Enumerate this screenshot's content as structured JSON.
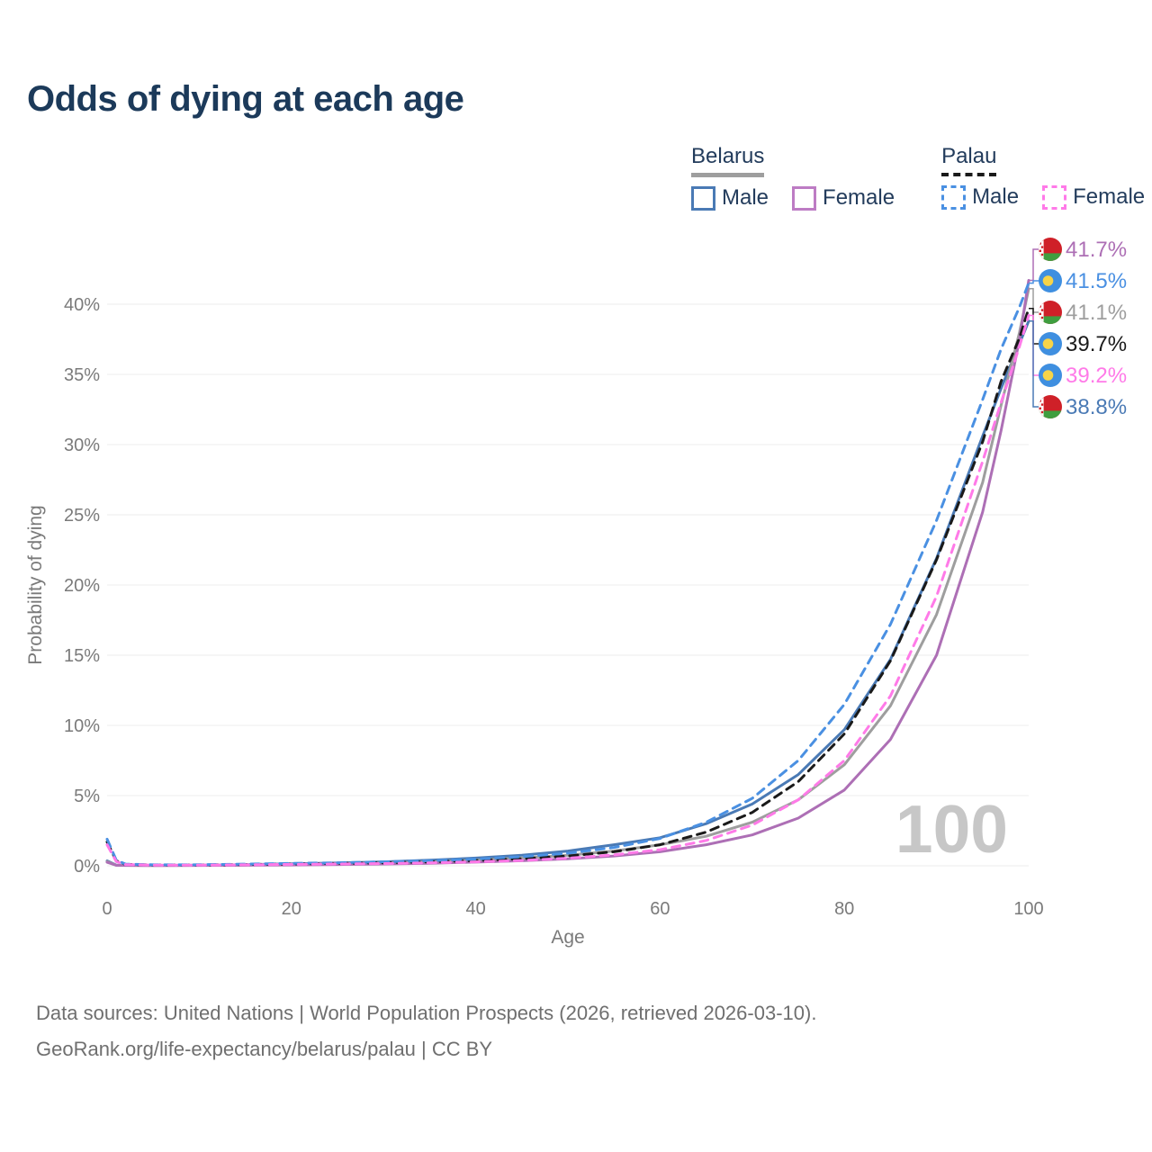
{
  "title": "Odds of dying at each age",
  "legend": {
    "groups": [
      {
        "country": "Belarus",
        "line_style": "solid",
        "underline_color": "#9e9e9e",
        "items": [
          {
            "label": "Male",
            "color": "#4a7ab5",
            "dashed": false
          },
          {
            "label": "Female",
            "color": "#bd7cc4",
            "dashed": false
          }
        ]
      },
      {
        "country": "Palau",
        "line_style": "dashed",
        "underline_color": "#1a1a1a",
        "items": [
          {
            "label": "Male",
            "color": "#4a90e2",
            "dashed": true
          },
          {
            "label": "Female",
            "color": "#ff7ae8",
            "dashed": true
          }
        ]
      }
    ]
  },
  "chart_data": {
    "type": "line",
    "title": "Odds of dying at each age",
    "xlabel": "Age",
    "ylabel": "Probability of dying",
    "xlim": [
      0,
      100
    ],
    "ylim": [
      0,
      40
    ],
    "grid": "horizontal",
    "legend_position": "top-right",
    "watermark": "100",
    "x_ticks": [
      {
        "value": 0,
        "label": "0"
      },
      {
        "value": 20,
        "label": "20"
      },
      {
        "value": 40,
        "label": "40"
      },
      {
        "value": 60,
        "label": "60"
      },
      {
        "value": 80,
        "label": "80"
      },
      {
        "value": 100,
        "label": "100"
      }
    ],
    "y_ticks": [
      {
        "value": 0,
        "label": "0%"
      },
      {
        "value": 5,
        "label": "5%"
      },
      {
        "value": 10,
        "label": "10%"
      },
      {
        "value": 15,
        "label": "15%"
      },
      {
        "value": 20,
        "label": "20%"
      },
      {
        "value": 25,
        "label": "25%"
      },
      {
        "value": 30,
        "label": "30%"
      },
      {
        "value": 35,
        "label": "35%"
      },
      {
        "value": 40,
        "label": "40%"
      }
    ],
    "series": [
      {
        "id": "belarus-male",
        "name": "Belarus Male",
        "country": "belarus",
        "sex": "male",
        "color": "#4a7ab5",
        "dashed": false,
        "end_label": "38.8%",
        "points": [
          [
            0,
            0.35
          ],
          [
            1,
            0.05
          ],
          [
            2,
            0.04
          ],
          [
            5,
            0.03
          ],
          [
            10,
            0.04
          ],
          [
            15,
            0.08
          ],
          [
            20,
            0.14
          ],
          [
            25,
            0.2
          ],
          [
            30,
            0.28
          ],
          [
            35,
            0.4
          ],
          [
            40,
            0.55
          ],
          [
            45,
            0.75
          ],
          [
            50,
            1.05
          ],
          [
            55,
            1.5
          ],
          [
            60,
            2.0
          ],
          [
            65,
            3.0
          ],
          [
            70,
            4.4
          ],
          [
            75,
            6.5
          ],
          [
            80,
            9.7
          ],
          [
            85,
            14.7
          ],
          [
            90,
            21.9
          ],
          [
            95,
            30.6
          ],
          [
            97,
            34.0
          ],
          [
            99,
            37.2
          ],
          [
            100,
            38.8
          ]
        ]
      },
      {
        "id": "belarus-all",
        "name": "Belarus",
        "country": "belarus",
        "sex": "both",
        "color": "#9e9e9e",
        "dashed": false,
        "end_label": "41.1%",
        "points": [
          [
            0,
            0.3
          ],
          [
            1,
            0.04
          ],
          [
            2,
            0.03
          ],
          [
            5,
            0.025
          ],
          [
            10,
            0.03
          ],
          [
            15,
            0.06
          ],
          [
            20,
            0.1
          ],
          [
            25,
            0.15
          ],
          [
            30,
            0.2
          ],
          [
            35,
            0.28
          ],
          [
            40,
            0.4
          ],
          [
            45,
            0.55
          ],
          [
            50,
            0.75
          ],
          [
            55,
            1.05
          ],
          [
            60,
            1.5
          ],
          [
            65,
            2.1
          ],
          [
            70,
            3.1
          ],
          [
            75,
            4.7
          ],
          [
            80,
            7.2
          ],
          [
            85,
            11.4
          ],
          [
            90,
            17.9
          ],
          [
            95,
            27.3
          ],
          [
            97,
            32.8
          ],
          [
            99,
            38.0
          ],
          [
            100,
            41.1
          ]
        ]
      },
      {
        "id": "belarus-female",
        "name": "Belarus Female",
        "country": "belarus",
        "sex": "female",
        "color": "#ad6fb5",
        "dashed": false,
        "end_label": "41.7%",
        "points": [
          [
            0,
            0.25
          ],
          [
            1,
            0.03
          ],
          [
            2,
            0.025
          ],
          [
            5,
            0.02
          ],
          [
            10,
            0.025
          ],
          [
            15,
            0.04
          ],
          [
            20,
            0.06
          ],
          [
            25,
            0.09
          ],
          [
            30,
            0.13
          ],
          [
            35,
            0.18
          ],
          [
            40,
            0.26
          ],
          [
            45,
            0.36
          ],
          [
            50,
            0.5
          ],
          [
            55,
            0.7
          ],
          [
            60,
            1.0
          ],
          [
            65,
            1.5
          ],
          [
            70,
            2.2
          ],
          [
            75,
            3.4
          ],
          [
            80,
            5.4
          ],
          [
            85,
            9.0
          ],
          [
            90,
            15.0
          ],
          [
            95,
            25.2
          ],
          [
            97,
            31.0
          ],
          [
            99,
            37.5
          ],
          [
            100,
            41.7
          ]
        ]
      },
      {
        "id": "palau-all",
        "name": "Palau",
        "country": "palau",
        "sex": "both",
        "color": "#1a1a1a",
        "dashed": true,
        "end_label": "39.7%",
        "points": [
          [
            0,
            1.7
          ],
          [
            1,
            0.35
          ],
          [
            2,
            0.1
          ],
          [
            5,
            0.06
          ],
          [
            10,
            0.06
          ],
          [
            15,
            0.09
          ],
          [
            20,
            0.13
          ],
          [
            25,
            0.17
          ],
          [
            30,
            0.21
          ],
          [
            35,
            0.28
          ],
          [
            40,
            0.37
          ],
          [
            45,
            0.5
          ],
          [
            50,
            0.7
          ],
          [
            55,
            1.0
          ],
          [
            60,
            1.5
          ],
          [
            65,
            2.4
          ],
          [
            70,
            3.8
          ],
          [
            75,
            6.0
          ],
          [
            80,
            9.4
          ],
          [
            85,
            14.6
          ],
          [
            90,
            21.8
          ],
          [
            95,
            30.2
          ],
          [
            97,
            34.5
          ],
          [
            99,
            37.6
          ],
          [
            100,
            39.7
          ]
        ]
      },
      {
        "id": "palau-male",
        "name": "Palau Male",
        "country": "palau",
        "sex": "male",
        "color": "#4a90e2",
        "dashed": true,
        "end_label": "41.5%",
        "points": [
          [
            0,
            1.9
          ],
          [
            1,
            0.4
          ],
          [
            2,
            0.12
          ],
          [
            5,
            0.07
          ],
          [
            10,
            0.08
          ],
          [
            15,
            0.12
          ],
          [
            20,
            0.17
          ],
          [
            25,
            0.22
          ],
          [
            30,
            0.28
          ],
          [
            35,
            0.36
          ],
          [
            40,
            0.48
          ],
          [
            45,
            0.65
          ],
          [
            50,
            0.9
          ],
          [
            55,
            1.3
          ],
          [
            60,
            1.95
          ],
          [
            65,
            3.1
          ],
          [
            70,
            4.8
          ],
          [
            75,
            7.5
          ],
          [
            80,
            11.5
          ],
          [
            85,
            17.2
          ],
          [
            90,
            24.6
          ],
          [
            95,
            33.2
          ],
          [
            97,
            36.8
          ],
          [
            99,
            39.8
          ],
          [
            100,
            41.5
          ]
        ]
      },
      {
        "id": "palau-female",
        "name": "Palau Female",
        "country": "palau",
        "sex": "female",
        "color": "#ff7ae8",
        "dashed": true,
        "end_label": "39.2%",
        "points": [
          [
            0,
            1.5
          ],
          [
            1,
            0.3
          ],
          [
            2,
            0.09
          ],
          [
            5,
            0.05
          ],
          [
            10,
            0.05
          ],
          [
            15,
            0.07
          ],
          [
            20,
            0.1
          ],
          [
            25,
            0.13
          ],
          [
            30,
            0.16
          ],
          [
            35,
            0.21
          ],
          [
            40,
            0.28
          ],
          [
            45,
            0.38
          ],
          [
            50,
            0.54
          ],
          [
            55,
            0.78
          ],
          [
            60,
            1.15
          ],
          [
            65,
            1.8
          ],
          [
            70,
            2.9
          ],
          [
            75,
            4.7
          ],
          [
            80,
            7.5
          ],
          [
            85,
            12.1
          ],
          [
            90,
            19.2
          ],
          [
            95,
            28.8
          ],
          [
            97,
            33.0
          ],
          [
            99,
            37.0
          ],
          [
            100,
            39.2
          ]
        ]
      }
    ]
  },
  "footer": {
    "line1": "Data sources: United Nations | World Population Prospects (2026, retrieved 2026-03-10).",
    "line2": "GeoRank.org/life-expectancy/belarus/palau | CC BY"
  }
}
